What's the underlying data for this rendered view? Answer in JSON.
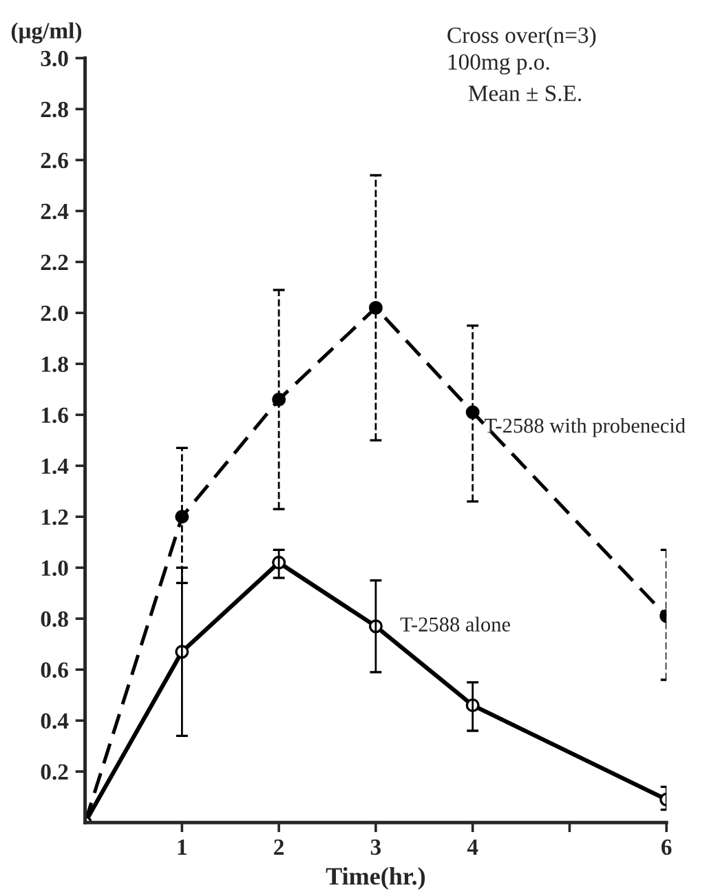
{
  "chart_data": {
    "type": "line",
    "xlabel": "Time(hr.)",
    "ylabel": "(μg/ml)",
    "x": [
      0,
      1,
      2,
      3,
      4,
      6
    ],
    "xlim": [
      0,
      6
    ],
    "xticks": [
      1,
      2,
      3,
      4,
      {
        "value": 5,
        "label": null
      },
      6
    ],
    "ylim": [
      0,
      3.0
    ],
    "yticks": [
      {
        "value": 0.2,
        "label": "0.2"
      },
      {
        "value": 0.4,
        "label": "0.4"
      },
      {
        "value": 0.6,
        "label": "0.6"
      },
      {
        "value": 0.8,
        "label": "0.8"
      },
      {
        "value": 1.0,
        "label": "1.0"
      },
      {
        "value": 1.2,
        "label": "1.2"
      },
      {
        "value": 1.4,
        "label": "1.4"
      },
      {
        "value": 1.6,
        "label": "1.6"
      },
      {
        "value": 1.8,
        "label": "1.8"
      },
      {
        "value": 2.0,
        "label": "2.0"
      },
      {
        "value": 2.2,
        "label": "2.2"
      },
      {
        "value": 2.4,
        "label": "2.4"
      },
      {
        "value": 2.6,
        "label": "2.6"
      },
      {
        "value": 2.8,
        "label": "2.8"
      },
      {
        "value": 3.0,
        "label": "3.0"
      }
    ],
    "grid": false,
    "legend": false,
    "series": [
      {
        "name": "T-2588 with probenecid",
        "color": "#000000",
        "line_style": "dashed",
        "marker": "circle",
        "values": [
          0,
          1.2,
          1.66,
          2.02,
          1.61,
          0.81
        ],
        "errors": [
          null,
          [
            0.94,
            1.47
          ],
          [
            1.23,
            2.09
          ],
          [
            1.5,
            2.54
          ],
          [
            1.26,
            1.95
          ],
          [
            0.56,
            1.07
          ]
        ]
      },
      {
        "name": "T-2588 alone",
        "color": "#000000",
        "line_style": "solid",
        "marker": "circle",
        "values": [
          0,
          0.67,
          1.02,
          0.77,
          0.46,
          0.09
        ],
        "errors": [
          null,
          [
            0.34,
            1.0
          ],
          [
            0.96,
            1.07
          ],
          [
            0.59,
            0.95
          ],
          [
            0.36,
            0.55
          ],
          [
            0.05,
            0.14
          ]
        ]
      }
    ],
    "annotations": [
      "Cross over(n=3)",
      "100mg p.o.",
      "Mean ± S.E."
    ]
  }
}
